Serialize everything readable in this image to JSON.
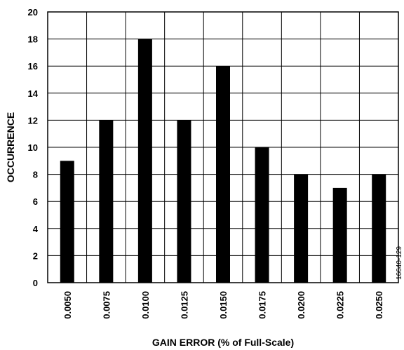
{
  "chart_data": {
    "type": "bar",
    "categories": [
      "0.0050",
      "0.0075",
      "0.0100",
      "0.0125",
      "0.0150",
      "0.0175",
      "0.0200",
      "0.0225",
      "0.0250"
    ],
    "values": [
      9,
      12,
      18,
      12,
      16,
      10,
      8,
      7,
      8
    ],
    "xlabel": "GAIN ERROR (% of Full-Scale)",
    "ylabel": "OCCURRENCE",
    "ylim": [
      0,
      20
    ],
    "yticks": [
      0,
      2,
      4,
      6,
      8,
      10,
      12,
      14,
      16,
      18,
      20
    ],
    "grid": true,
    "bar_color": "#000000"
  },
  "figure_id": "16640-129"
}
